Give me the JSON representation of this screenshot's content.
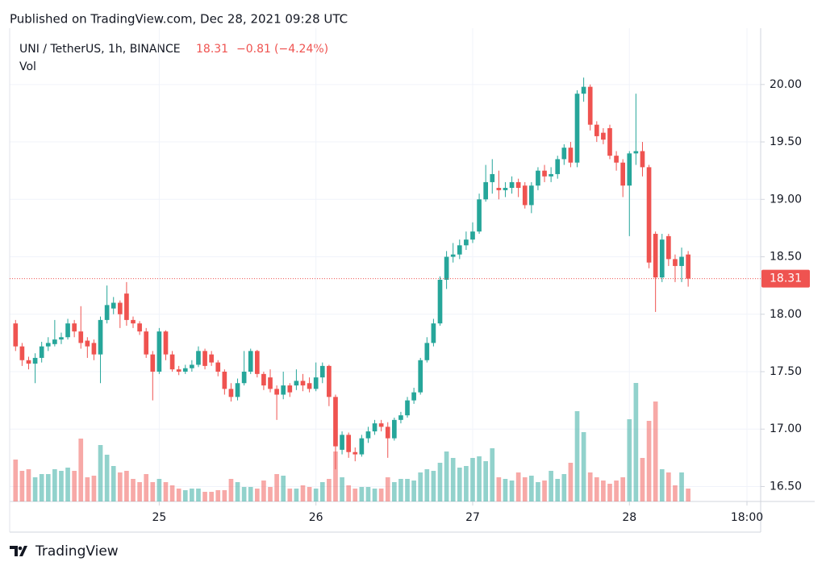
{
  "chart_data": {
    "type": "candlestick",
    "published": "Published on TradingView.com, Dec 28, 2021 09:28 UTC",
    "title": "UNI / TetherUS, 1h, BINANCE",
    "last_price": 18.31,
    "change": {
      "value": -0.81,
      "label": "−0.81"
    },
    "change_percent": {
      "value": -4.24,
      "label": "(−4.24%)"
    },
    "volume_label": "Vol",
    "brand": "TradingView",
    "up_color": "#26a69a",
    "down_color": "#ef5350",
    "ylim": [
      16.37,
      20.49
    ],
    "yticks": [
      {
        "value": 16.5,
        "label": "16.50"
      },
      {
        "value": 17,
        "label": "17.00"
      },
      {
        "value": 17.5,
        "label": "17.50"
      },
      {
        "value": 18,
        "label": "18.00"
      },
      {
        "value": 18.5,
        "label": "18.50"
      },
      {
        "value": 19,
        "label": "19.00"
      },
      {
        "value": 19.5,
        "label": "19.50"
      },
      {
        "value": 20,
        "label": "20.00"
      }
    ],
    "xlim": [
      -0.9,
      114.1
    ],
    "xticks": [
      {
        "value": 22,
        "label": "25"
      },
      {
        "value": 46,
        "label": "26"
      },
      {
        "value": 70,
        "label": "27"
      },
      {
        "value": 94,
        "label": "28"
      },
      {
        "value": 112,
        "label": "18:00"
      }
    ],
    "grid": true,
    "candles": {
      "open": [
        17.92,
        17.72,
        17.6,
        17.57,
        17.62,
        17.72,
        17.74,
        17.78,
        17.8,
        17.92,
        17.85,
        17.77,
        17.75,
        17.65,
        17.95,
        18.05,
        18.1,
        18.18,
        17.95,
        17.92,
        17.85,
        17.65,
        17.5,
        17.85,
        17.65,
        17.52,
        17.5,
        17.53,
        17.56,
        17.68,
        17.65,
        17.58,
        17.5,
        17.35,
        17.28,
        17.4,
        17.5,
        17.68,
        17.48,
        17.45,
        17.35,
        17.3,
        17.38,
        17.38,
        17.42,
        17.4,
        17.35,
        17.45,
        17.55,
        17.28,
        16.82,
        16.95,
        16.8,
        16.78,
        16.92,
        16.98,
        17.05,
        17.02,
        16.92,
        17.08,
        17.12,
        17.25,
        17.32,
        17.6,
        17.75,
        17.92,
        18.3,
        18.5,
        18.52,
        18.6,
        18.65,
        18.72,
        19.0,
        19.15,
        19.1,
        19.08,
        19.1,
        19.15,
        19.12,
        18.95,
        19.12,
        19.25,
        19.2,
        19.22,
        19.35,
        19.45,
        19.32,
        19.92,
        19.98,
        19.65,
        19.58,
        19.62,
        19.38,
        19.32,
        19.12,
        19.4,
        19.42,
        19.28,
        18.7,
        18.32,
        18.68,
        18.48,
        18.42,
        18.52
      ],
      "high": [
        17.95,
        17.75,
        17.63,
        17.66,
        17.76,
        17.8,
        17.95,
        17.84,
        17.96,
        17.95,
        18.07,
        17.8,
        17.78,
        17.98,
        18.25,
        18.15,
        18.12,
        18.28,
        17.98,
        17.94,
        17.88,
        17.68,
        17.88,
        17.86,
        17.68,
        17.55,
        17.56,
        17.6,
        17.72,
        17.7,
        17.68,
        17.6,
        17.52,
        17.4,
        17.44,
        17.68,
        17.7,
        17.69,
        17.5,
        17.52,
        17.38,
        17.5,
        17.4,
        17.52,
        17.48,
        17.45,
        17.58,
        17.58,
        17.56,
        17.3,
        16.98,
        16.97,
        16.84,
        16.95,
        17.02,
        17.08,
        17.08,
        17.06,
        17.1,
        17.15,
        17.28,
        17.36,
        17.62,
        17.8,
        17.96,
        18.33,
        18.55,
        18.62,
        18.65,
        18.72,
        18.8,
        19.05,
        19.3,
        19.35,
        19.25,
        19.15,
        19.2,
        19.18,
        19.15,
        19.15,
        19.28,
        19.3,
        19.28,
        19.38,
        19.48,
        19.5,
        19.95,
        20.06,
        20.0,
        19.68,
        19.62,
        19.65,
        19.42,
        19.35,
        19.42,
        19.92,
        19.5,
        19.3,
        18.72,
        18.7,
        18.7,
        18.52,
        18.58,
        18.55
      ],
      "low": [
        17.68,
        17.55,
        17.52,
        17.4,
        17.58,
        17.68,
        17.72,
        17.74,
        17.78,
        17.8,
        17.7,
        17.62,
        17.6,
        17.4,
        17.92,
        18.0,
        17.88,
        17.9,
        17.88,
        17.82,
        17.62,
        17.25,
        17.48,
        17.6,
        17.5,
        17.47,
        17.48,
        17.5,
        17.54,
        17.52,
        17.55,
        17.46,
        17.3,
        17.24,
        17.25,
        17.38,
        17.48,
        17.45,
        17.34,
        17.32,
        17.08,
        17.26,
        17.28,
        17.34,
        17.33,
        17.32,
        17.33,
        17.4,
        17.2,
        16.65,
        16.78,
        16.75,
        16.72,
        16.76,
        16.88,
        16.95,
        16.98,
        16.75,
        16.9,
        17.05,
        17.1,
        17.22,
        17.3,
        17.58,
        17.72,
        17.9,
        18.22,
        18.45,
        18.48,
        18.56,
        18.62,
        18.7,
        18.98,
        19.05,
        19.0,
        19.02,
        19.05,
        19.02,
        18.92,
        18.88,
        19.08,
        19.15,
        19.15,
        19.18,
        19.3,
        19.28,
        19.28,
        19.85,
        19.6,
        19.5,
        19.48,
        19.35,
        19.25,
        19.02,
        18.68,
        19.3,
        19.2,
        18.4,
        18.02,
        18.28,
        18.42,
        18.28,
        18.28,
        18.24
      ],
      "close": [
        17.72,
        17.6,
        17.57,
        17.62,
        17.72,
        17.75,
        17.78,
        17.8,
        17.92,
        17.85,
        17.75,
        17.72,
        17.65,
        17.95,
        18.08,
        18.1,
        18.0,
        17.95,
        17.92,
        17.85,
        17.65,
        17.5,
        17.85,
        17.65,
        17.52,
        17.5,
        17.53,
        17.56,
        17.68,
        17.55,
        17.58,
        17.5,
        17.35,
        17.28,
        17.4,
        17.5,
        17.68,
        17.48,
        17.38,
        17.35,
        17.3,
        17.38,
        17.32,
        17.42,
        17.38,
        17.35,
        17.45,
        17.55,
        17.28,
        16.85,
        16.95,
        16.8,
        16.78,
        16.92,
        16.98,
        17.05,
        17.02,
        16.92,
        17.08,
        17.12,
        17.25,
        17.32,
        17.6,
        17.75,
        17.92,
        18.3,
        18.5,
        18.52,
        18.6,
        18.65,
        18.72,
        19.0,
        19.15,
        19.22,
        19.08,
        19.1,
        19.15,
        19.1,
        18.95,
        19.12,
        19.25,
        19.2,
        19.22,
        19.35,
        19.45,
        19.32,
        19.92,
        19.98,
        19.65,
        19.55,
        19.52,
        19.38,
        19.32,
        19.12,
        19.4,
        19.42,
        19.28,
        18.45,
        18.32,
        18.65,
        18.48,
        18.42,
        18.5,
        18.31
      ]
    },
    "volume": [
      52,
      38,
      40,
      30,
      34,
      34,
      40,
      38,
      42,
      38,
      78,
      30,
      32,
      70,
      58,
      44,
      36,
      38,
      28,
      24,
      34,
      24,
      28,
      24,
      20,
      16,
      14,
      16,
      16,
      12,
      12,
      14,
      14,
      28,
      24,
      18,
      18,
      16,
      26,
      18,
      34,
      32,
      16,
      16,
      20,
      18,
      16,
      24,
      28,
      62,
      30,
      20,
      16,
      18,
      18,
      16,
      16,
      30,
      24,
      28,
      28,
      26,
      36,
      40,
      38,
      48,
      62,
      54,
      42,
      44,
      54,
      56,
      50,
      66,
      30,
      28,
      26,
      36,
      30,
      32,
      24,
      26,
      38,
      28,
      34,
      48,
      112,
      86,
      36,
      30,
      26,
      22,
      26,
      30,
      102,
      147,
      54,
      100,
      124,
      40,
      36,
      20,
      36,
      16
    ]
  }
}
